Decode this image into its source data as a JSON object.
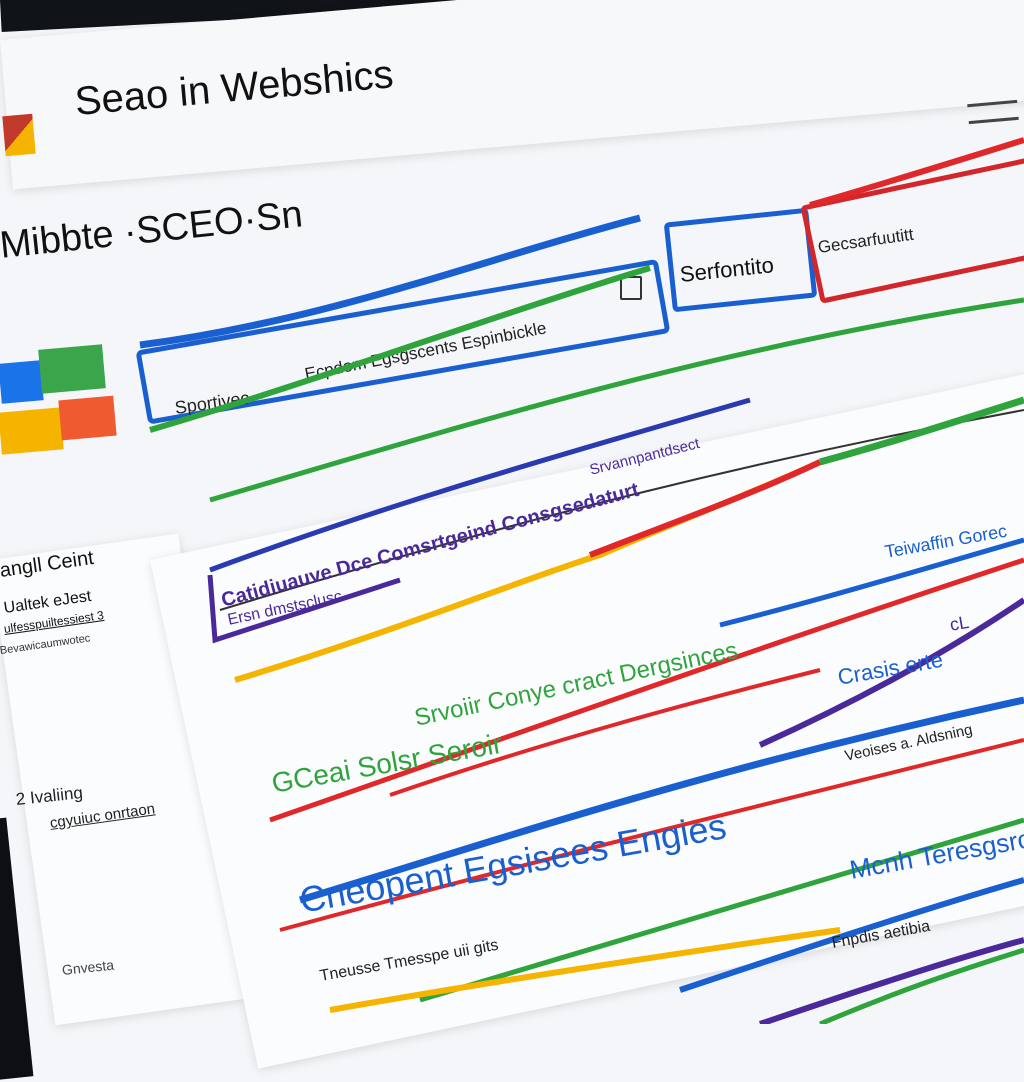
{
  "header": {
    "title": "Seao in Webshics",
    "menu_icon": "hamburger-icon"
  },
  "subheader": {
    "title": "Mibbte ·SCEO·Sn"
  },
  "search": {
    "label": "Sportivec",
    "placeholder": "Ecpdom Egsgscents Espinbickle"
  },
  "buttons": {
    "primary": "Serfontito",
    "secondary": "Gecsarfuutitt"
  },
  "sidebar": {
    "heading": "angll Ceint",
    "items": [
      "Ualtek eJest",
      "ulfesspuiltessiest 3",
      "Bevawicaumwotec",
      "2 Ivaliing",
      "cgyuiuc onrtaon",
      "Gnvesta"
    ]
  },
  "main": {
    "section_label": "Srvannpantdsect",
    "card_title": "Catidiuauve Dce Comsrtgeind Consgsedaturt",
    "card_subtitle": "Ersn dmstsclusc",
    "side_label_1": "Teiwaffin Gorec",
    "green_heading": "Srvoiir Conye cract Dergsinces",
    "side_label_2": "Crasis erte",
    "side_mark": "cL",
    "green_title": "GCeai Solsr Seroir",
    "side_label_3": "Veoises a. Aldsning",
    "big_title": "Cneopent Egsisees Engies",
    "side_label_4": "Mcnh Teresgsro",
    "footer_text": "Tneusse Tmesspe uii gits",
    "side_label_5": "Fnpdis aetibia"
  },
  "colors": {
    "blue": "#1a5fd0",
    "green": "#2fa43c",
    "red": "#e0282a",
    "yellow": "#f4b400",
    "purple": "#4a2a9a",
    "orange": "#f07030"
  }
}
